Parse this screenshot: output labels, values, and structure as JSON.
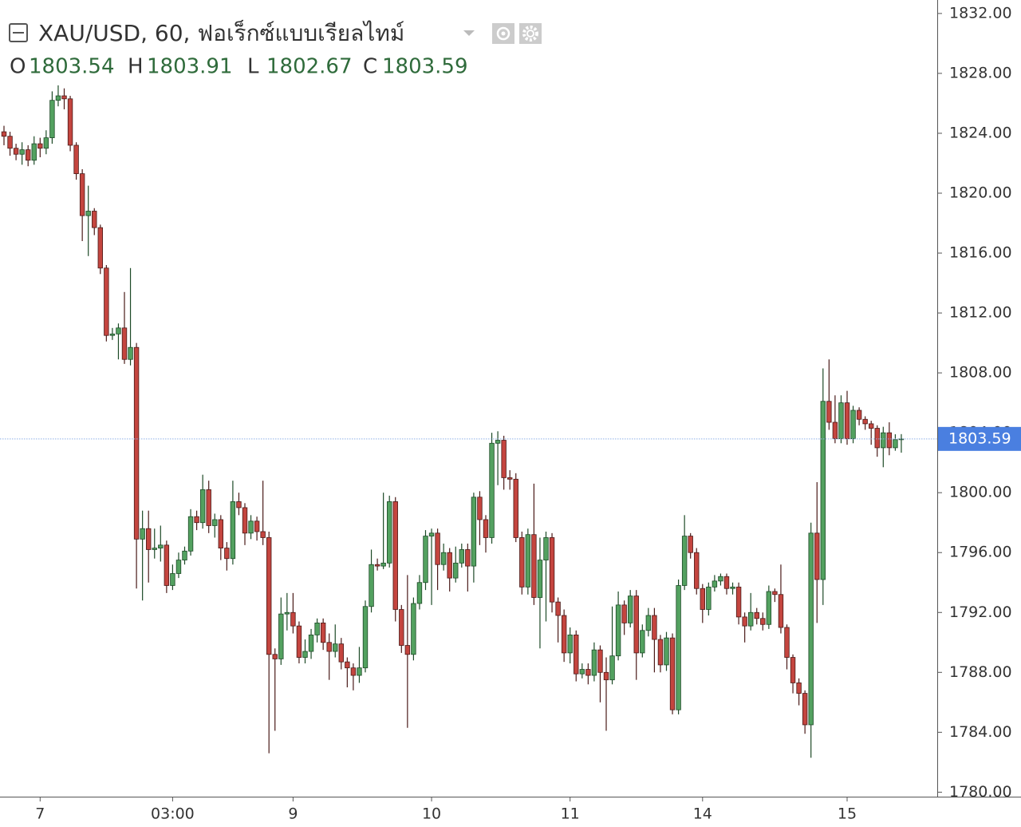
{
  "chart_data": {
    "type": "candlestick",
    "title": "XAU/USD, 60, ฟอเร็กซ์แบบเรียลไทม์",
    "ohlc_labels": [
      "O",
      "H",
      "L",
      "C"
    ],
    "up_color": "#53a160",
    "down_color": "#c4453f",
    "open": [
      1824.1,
      1823.8,
      1823.0,
      1822.6,
      1822.9,
      1822.2,
      1823.3,
      1823.0,
      1823.7,
      1826.2,
      1826.5,
      1826.3,
      1823.2,
      1821.3,
      1818.5,
      1818.8,
      1817.7,
      1815.0,
      1810.5,
      1810.6,
      1811.0,
      1808.9,
      1809.7,
      1796.9,
      1797.6,
      1796.2,
      1796.3,
      1796.5,
      1793.8,
      1794.6,
      1795.5,
      1796.1,
      1798.4,
      1798.0,
      1800.2,
      1797.8,
      1798.2,
      1796.3,
      1795.6,
      1799.4,
      1799.0,
      1797.3,
      1798.1,
      1797.4,
      1797.0,
      1789.2,
      1788.9,
      1791.9,
      1792.0,
      1791.1,
      1789.0,
      1789.4,
      1790.5,
      1791.3,
      1790.0,
      1789.4,
      1789.9,
      1788.7,
      1788.3,
      1787.8,
      1788.3,
      1792.4,
      1795.2,
      1795.1,
      1795.3,
      1799.4,
      1792.2,
      1789.8,
      1789.2,
      1792.6,
      1794.0,
      1797.1,
      1797.3,
      1795.2,
      1796.0,
      1794.3,
      1795.3,
      1796.2,
      1795.1,
      1799.7,
      1798.2,
      1797.0,
      1803.3,
      1803.5,
      1801.0,
      1800.9,
      1797.0,
      1793.7,
      1797.2,
      1793.0,
      1795.5,
      1797.0,
      1792.7,
      1791.8,
      1789.3,
      1790.5,
      1787.9,
      1788.2,
      1787.8,
      1789.5,
      1788.0,
      1787.5,
      1789.1,
      1792.5,
      1791.3,
      1793.1,
      1789.3,
      1790.8,
      1791.8,
      1790.2,
      1788.5,
      1790.3,
      1785.5,
      1793.8,
      1797.1,
      1796.0,
      1793.6,
      1792.2,
      1793.7,
      1794.1,
      1794.4,
      1793.6,
      1793.7,
      1791.7,
      1791.1,
      1792.0,
      1791.6,
      1791.2,
      1793.4,
      1793.2,
      1791.0,
      1789.0,
      1787.3,
      1786.6,
      1784.5,
      1797.3,
      1794.2,
      1806.1,
      1804.7,
      1803.6,
      1806.0,
      1803.6,
      1805.5,
      1804.9,
      1804.6,
      1804.3,
      1803.0,
      1804.0,
      1803.0,
      1803.54
    ],
    "high": [
      1824.5,
      1824.1,
      1823.3,
      1823.4,
      1823.2,
      1823.8,
      1823.7,
      1824.2,
      1826.8,
      1827.2,
      1827.0,
      1826.5,
      1823.4,
      1821.6,
      1820.5,
      1819.0,
      1817.9,
      1815.2,
      1811.0,
      1811.3,
      1813.4,
      1815.0,
      1810.0,
      1798.8,
      1798.8,
      1797.6,
      1797.8,
      1796.8,
      1795.2,
      1796.0,
      1796.4,
      1798.9,
      1798.8,
      1801.2,
      1800.8,
      1798.6,
      1798.5,
      1796.7,
      1800.8,
      1800.0,
      1799.3,
      1798.5,
      1798.4,
      1800.8,
      1797.4,
      1789.6,
      1793.0,
      1793.3,
      1793.3,
      1791.4,
      1790.2,
      1790.9,
      1791.6,
      1791.6,
      1790.6,
      1791.2,
      1790.3,
      1789.0,
      1788.6,
      1789.7,
      1792.8,
      1796.2,
      1795.6,
      1800.0,
      1799.8,
      1799.7,
      1792.5,
      1794.5,
      1793.0,
      1794.5,
      1797.5,
      1797.6,
      1797.6,
      1796.6,
      1796.3,
      1796.4,
      1796.6,
      1796.6,
      1800.0,
      1800.1,
      1798.5,
      1804.0,
      1804.1,
      1803.8,
      1801.5,
      1801.3,
      1797.4,
      1797.6,
      1800.6,
      1797.0,
      1797.4,
      1797.3,
      1793.0,
      1792.2,
      1791.0,
      1790.8,
      1788.6,
      1788.6,
      1790.0,
      1789.8,
      1789.0,
      1792.4,
      1793.4,
      1792.8,
      1793.5,
      1793.5,
      1791.2,
      1792.3,
      1792.3,
      1790.5,
      1790.7,
      1790.6,
      1794.2,
      1798.5,
      1797.3,
      1796.3,
      1793.9,
      1794.0,
      1794.5,
      1794.6,
      1794.6,
      1794.0,
      1794.0,
      1792.0,
      1793.3,
      1792.3,
      1792.0,
      1793.8,
      1793.6,
      1795.2,
      1791.2,
      1789.2,
      1787.6,
      1786.8,
      1798.0,
      1800.7,
      1808.3,
      1808.9,
      1806.5,
      1806.5,
      1806.8,
      1805.8,
      1805.7,
      1805.1,
      1804.8,
      1804.5,
      1804.4,
      1804.7,
      1803.9,
      1803.91
    ],
    "low": [
      1823.2,
      1822.5,
      1822.2,
      1821.9,
      1821.8,
      1821.9,
      1822.4,
      1822.6,
      1823.3,
      1825.8,
      1825.6,
      1822.8,
      1820.9,
      1816.8,
      1815.8,
      1817.2,
      1814.6,
      1810.1,
      1810.2,
      1808.9,
      1808.6,
      1808.5,
      1793.6,
      1792.8,
      1794.0,
      1795.6,
      1795.4,
      1793.3,
      1793.5,
      1794.3,
      1795.2,
      1795.8,
      1797.5,
      1797.6,
      1797.3,
      1797.0,
      1795.5,
      1794.8,
      1795.2,
      1798.5,
      1796.5,
      1796.9,
      1796.8,
      1796.5,
      1782.6,
      1784.1,
      1788.5,
      1790.8,
      1790.6,
      1788.6,
      1788.6,
      1788.9,
      1790.0,
      1789.5,
      1787.5,
      1789.0,
      1788.2,
      1787.0,
      1786.8,
      1787.3,
      1788.0,
      1792.0,
      1794.8,
      1794.9,
      1795.0,
      1791.4,
      1789.3,
      1784.3,
      1788.8,
      1792.2,
      1793.5,
      1792.5,
      1793.5,
      1794.8,
      1793.4,
      1794.0,
      1795.0,
      1793.4,
      1794.0,
      1796.5,
      1796.0,
      1796.6,
      1800.5,
      1800.2,
      1800.2,
      1796.7,
      1793.2,
      1793.2,
      1792.5,
      1789.6,
      1791.4,
      1792.0,
      1790.0,
      1788.7,
      1788.6,
      1787.4,
      1787.6,
      1787.2,
      1787.4,
      1786.0,
      1784.1,
      1787.2,
      1788.8,
      1790.5,
      1791.0,
      1787.5,
      1789.0,
      1790.4,
      1788.0,
      1788.0,
      1788.1,
      1785.2,
      1785.2,
      1793.5,
      1795.6,
      1793.2,
      1791.3,
      1791.8,
      1793.4,
      1793.8,
      1793.2,
      1793.2,
      1791.2,
      1790.0,
      1790.8,
      1791.2,
      1790.8,
      1790.9,
      1792.7,
      1790.6,
      1788.2,
      1786.6,
      1785.8,
      1783.9,
      1782.3,
      1791.3,
      1792.5,
      1804.2,
      1803.3,
      1803.3,
      1803.2,
      1803.3,
      1804.5,
      1804.2,
      1803.2,
      1802.4,
      1801.7,
      1802.5,
      1802.8,
      1802.67
    ],
    "close": [
      1823.8,
      1823.0,
      1822.6,
      1822.9,
      1822.2,
      1823.3,
      1823.0,
      1823.7,
      1826.2,
      1826.5,
      1826.3,
      1823.2,
      1821.3,
      1818.5,
      1818.8,
      1817.7,
      1815.0,
      1810.5,
      1810.6,
      1811.0,
      1808.9,
      1809.7,
      1796.9,
      1797.6,
      1796.2,
      1796.3,
      1796.5,
      1793.8,
      1794.6,
      1795.5,
      1796.1,
      1798.4,
      1798.0,
      1800.2,
      1797.8,
      1798.2,
      1796.3,
      1795.6,
      1799.4,
      1799.0,
      1797.3,
      1798.1,
      1797.4,
      1797.0,
      1789.2,
      1788.9,
      1791.9,
      1792.0,
      1791.1,
      1789.0,
      1789.4,
      1790.5,
      1791.3,
      1790.0,
      1789.4,
      1789.9,
      1788.7,
      1788.3,
      1787.8,
      1788.3,
      1792.4,
      1795.2,
      1795.1,
      1795.3,
      1799.4,
      1792.2,
      1789.8,
      1789.2,
      1792.6,
      1794.0,
      1797.1,
      1797.3,
      1795.2,
      1796.0,
      1794.3,
      1795.3,
      1796.2,
      1795.1,
      1799.7,
      1798.2,
      1797.0,
      1803.3,
      1803.5,
      1801.0,
      1800.9,
      1797.0,
      1793.7,
      1797.2,
      1793.0,
      1795.5,
      1797.0,
      1792.7,
      1791.8,
      1789.3,
      1790.5,
      1787.9,
      1788.2,
      1787.8,
      1789.5,
      1788.0,
      1787.5,
      1789.1,
      1792.5,
      1791.3,
      1793.1,
      1789.3,
      1790.8,
      1791.8,
      1790.2,
      1788.5,
      1790.3,
      1785.5,
      1793.8,
      1797.1,
      1796.0,
      1793.6,
      1792.2,
      1793.7,
      1794.1,
      1794.4,
      1793.6,
      1793.7,
      1791.7,
      1791.1,
      1792.0,
      1791.6,
      1791.2,
      1793.4,
      1793.2,
      1791.0,
      1789.0,
      1787.3,
      1786.6,
      1784.5,
      1797.3,
      1794.2,
      1806.1,
      1804.7,
      1803.6,
      1806.0,
      1803.6,
      1805.5,
      1804.9,
      1804.6,
      1804.3,
      1803.0,
      1804.0,
      1803.0,
      1803.54,
      1803.59
    ],
    "ylim": [
      1779.7,
      1832.9
    ],
    "yticks": [
      {
        "value": 1780,
        "label": "1780.00"
      },
      {
        "value": 1784,
        "label": "1784.00"
      },
      {
        "value": 1788,
        "label": "1788.00"
      },
      {
        "value": 1792,
        "label": "1792.00"
      },
      {
        "value": 1796,
        "label": "1796.00"
      },
      {
        "value": 1800,
        "label": "1800.00"
      },
      {
        "value": 1804,
        "label": "1804.00"
      },
      {
        "value": 1808,
        "label": "1808.00"
      },
      {
        "value": 1812,
        "label": "1812.00"
      },
      {
        "value": 1816,
        "label": "1816.00"
      },
      {
        "value": 1820,
        "label": "1820.00"
      },
      {
        "value": 1824,
        "label": "1824.00"
      },
      {
        "value": 1828,
        "label": "1828.00"
      },
      {
        "value": 1832,
        "label": "1832.00"
      }
    ],
    "xticks": [
      {
        "value": 6,
        "label": "7"
      },
      {
        "value": 28,
        "label": "03:00"
      },
      {
        "value": 48,
        "label": "9"
      },
      {
        "value": 71,
        "label": "10"
      },
      {
        "value": 94,
        "label": "11"
      },
      {
        "value": 116,
        "label": "14"
      },
      {
        "value": 140,
        "label": "15"
      }
    ]
  }
}
